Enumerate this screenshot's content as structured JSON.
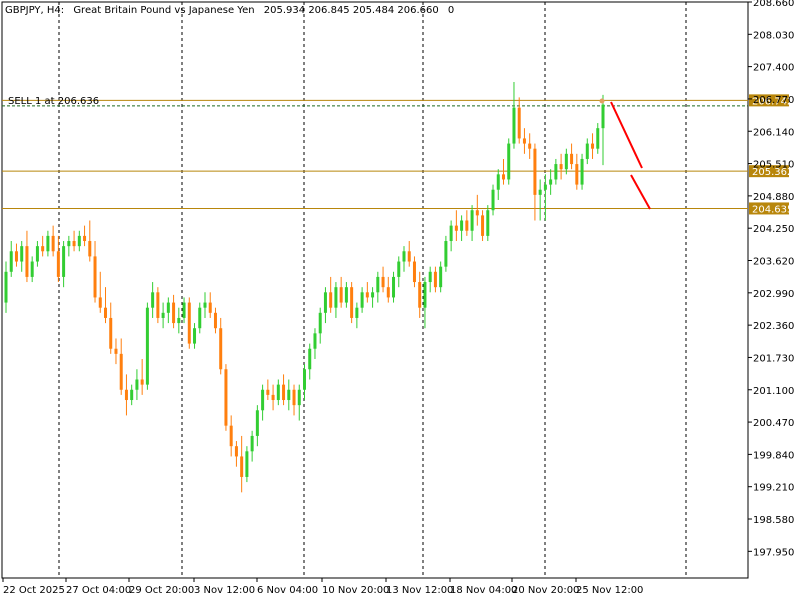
{
  "header": {
    "symbol": "GBPJPY, H4:",
    "description": "Great Britain Pound vs Japanese Yen",
    "ohlc": "205.934 206.845 205.484 206.660",
    "volume": "0"
  },
  "order_label": "SELL 1 at 206.636",
  "colors": {
    "bull": "#32cd32",
    "bear": "#ff7f0e",
    "level": "#b8860b",
    "arrow": "#ff0000",
    "grid": "#000000",
    "price_tag": "#b8860b"
  },
  "chart_data": {
    "type": "candlestick",
    "symbol": "GBPJPY",
    "timeframe": "H4",
    "ylim": [
      197.43,
      208.66
    ],
    "y_ticks": [
      "208.660",
      "208.030",
      "207.400",
      "206.770",
      "206.140",
      "205.510",
      "204.880",
      "204.250",
      "203.620",
      "202.990",
      "202.360",
      "201.730",
      "201.100",
      "200.470",
      "199.840",
      "199.210",
      "198.580",
      "197.950"
    ],
    "x_ticks": [
      "22 Oct 2025",
      "27 Oct 04:00",
      "29 Oct 20:00",
      "3 Nov 12:00",
      "6 Nov 04:00",
      "10 Nov 20:00",
      "13 Nov 12:00",
      "18 Nov 04:00",
      "20 Nov 20:00",
      "25 Nov 12:00"
    ],
    "grid": "vertical dashed",
    "levels": [
      {
        "price": 206.742,
        "label": "206.742"
      },
      {
        "price": 206.636,
        "label": "206.636"
      },
      {
        "price": 205.362,
        "label": "205.362"
      },
      {
        "price": 204.635,
        "label": "204.635"
      }
    ],
    "candles": [
      [
        202.8,
        203.6,
        202.6,
        203.4
      ],
      [
        203.4,
        204.0,
        203.3,
        203.8
      ],
      [
        203.8,
        203.95,
        203.5,
        203.6
      ],
      [
        203.6,
        204.0,
        203.4,
        203.9
      ],
      [
        203.9,
        204.2,
        203.2,
        203.3
      ],
      [
        203.3,
        203.7,
        203.2,
        203.6
      ],
      [
        203.6,
        204.0,
        203.5,
        203.9
      ],
      [
        203.9,
        204.1,
        203.7,
        203.8
      ],
      [
        203.8,
        204.2,
        203.7,
        204.1
      ],
      [
        204.1,
        204.3,
        203.7,
        203.8
      ],
      [
        203.8,
        204.1,
        203.2,
        203.3
      ],
      [
        203.3,
        204.0,
        203.1,
        203.9
      ],
      [
        203.9,
        204.1,
        203.7,
        204.0
      ],
      [
        204.0,
        204.2,
        203.8,
        203.9
      ],
      [
        203.9,
        204.2,
        203.8,
        204.1
      ],
      [
        204.1,
        204.3,
        203.9,
        204.0
      ],
      [
        204.0,
        204.4,
        203.6,
        203.7
      ],
      [
        203.7,
        204.0,
        202.8,
        202.9
      ],
      [
        202.9,
        203.4,
        202.6,
        202.7
      ],
      [
        202.7,
        203.1,
        202.4,
        202.5
      ],
      [
        202.5,
        202.8,
        201.8,
        201.9
      ],
      [
        201.9,
        202.1,
        201.6,
        201.8
      ],
      [
        201.8,
        202.1,
        201.0,
        201.1
      ],
      [
        201.1,
        201.4,
        200.6,
        200.9
      ],
      [
        200.9,
        201.2,
        200.8,
        201.1
      ],
      [
        201.1,
        201.5,
        200.9,
        201.3
      ],
      [
        201.3,
        201.7,
        201.0,
        201.2
      ],
      [
        201.2,
        202.8,
        201.1,
        202.7
      ],
      [
        202.7,
        203.2,
        202.5,
        203.0
      ],
      [
        203.0,
        203.1,
        202.4,
        202.5
      ],
      [
        202.5,
        202.8,
        202.3,
        202.6
      ],
      [
        202.6,
        202.9,
        202.4,
        202.8
      ],
      [
        202.8,
        202.95,
        202.3,
        202.4
      ],
      [
        202.4,
        202.7,
        202.2,
        202.5
      ],
      [
        202.5,
        202.9,
        202.4,
        202.8
      ],
      [
        202.8,
        202.9,
        201.9,
        202.0
      ],
      [
        202.0,
        202.4,
        201.9,
        202.3
      ],
      [
        202.3,
        202.8,
        202.2,
        202.7
      ],
      [
        202.7,
        203.0,
        202.5,
        202.8
      ],
      [
        202.8,
        203.0,
        202.5,
        202.6
      ],
      [
        202.6,
        202.7,
        202.2,
        202.3
      ],
      [
        202.3,
        202.5,
        201.4,
        201.5
      ],
      [
        201.5,
        201.6,
        200.3,
        200.4
      ],
      [
        200.4,
        200.6,
        199.8,
        200.0
      ],
      [
        200.0,
        200.1,
        199.6,
        199.8
      ],
      [
        199.8,
        200.2,
        199.1,
        199.4
      ],
      [
        199.4,
        200.0,
        199.3,
        199.9
      ],
      [
        199.9,
        200.3,
        199.7,
        200.2
      ],
      [
        200.2,
        200.8,
        200.0,
        200.7
      ],
      [
        200.7,
        201.2,
        200.5,
        201.1
      ],
      [
        201.1,
        201.3,
        200.9,
        201.0
      ],
      [
        201.0,
        201.2,
        200.7,
        200.9
      ],
      [
        200.9,
        201.3,
        200.8,
        201.2
      ],
      [
        201.2,
        201.4,
        200.8,
        200.9
      ],
      [
        200.9,
        201.3,
        200.7,
        201.1
      ],
      [
        201.1,
        201.2,
        200.6,
        200.8
      ],
      [
        200.8,
        201.2,
        200.5,
        201.1
      ],
      [
        201.1,
        201.6,
        200.9,
        201.5
      ],
      [
        201.5,
        202.0,
        201.3,
        201.9
      ],
      [
        201.9,
        202.3,
        201.7,
        202.2
      ],
      [
        202.2,
        202.7,
        202.0,
        202.6
      ],
      [
        202.6,
        203.1,
        202.4,
        203.0
      ],
      [
        203.0,
        203.3,
        202.6,
        202.7
      ],
      [
        202.7,
        203.2,
        202.5,
        203.1
      ],
      [
        203.1,
        203.3,
        202.7,
        202.8
      ],
      [
        202.8,
        203.2,
        202.7,
        203.1
      ],
      [
        203.1,
        203.2,
        202.4,
        202.5
      ],
      [
        202.5,
        202.8,
        202.3,
        202.7
      ],
      [
        202.7,
        203.1,
        202.6,
        203.0
      ],
      [
        203.0,
        203.2,
        202.8,
        202.9
      ],
      [
        202.9,
        203.1,
        202.7,
        203.0
      ],
      [
        203.0,
        203.4,
        202.8,
        203.3
      ],
      [
        203.3,
        203.5,
        203.0,
        203.1
      ],
      [
        203.1,
        203.3,
        202.8,
        202.9
      ],
      [
        202.9,
        203.4,
        202.8,
        203.3
      ],
      [
        203.3,
        203.7,
        203.1,
        203.6
      ],
      [
        203.6,
        203.9,
        203.4,
        203.8
      ],
      [
        203.8,
        204.0,
        203.5,
        203.6
      ],
      [
        203.6,
        203.7,
        203.1,
        203.2
      ],
      [
        203.2,
        203.4,
        202.5,
        202.7
      ],
      [
        202.7,
        203.3,
        202.3,
        203.2
      ],
      [
        203.2,
        203.5,
        203.0,
        203.4
      ],
      [
        203.4,
        203.5,
        203.0,
        203.1
      ],
      [
        203.1,
        203.6,
        203.0,
        203.5
      ],
      [
        203.5,
        204.1,
        203.4,
        204.0
      ],
      [
        204.0,
        204.4,
        203.8,
        204.3
      ],
      [
        204.3,
        204.6,
        204.0,
        204.2
      ],
      [
        204.2,
        204.5,
        204.0,
        204.4
      ],
      [
        204.4,
        204.6,
        204.1,
        204.2
      ],
      [
        204.2,
        204.7,
        204.0,
        204.6
      ],
      [
        204.6,
        204.9,
        204.3,
        204.5
      ],
      [
        204.5,
        204.6,
        204.0,
        204.1
      ],
      [
        204.1,
        204.7,
        204.0,
        204.6
      ],
      [
        204.6,
        205.1,
        204.5,
        205.0
      ],
      [
        205.0,
        205.4,
        204.8,
        205.3
      ],
      [
        205.3,
        205.6,
        205.1,
        205.2
      ],
      [
        205.2,
        206.0,
        205.1,
        205.9
      ],
      [
        205.9,
        207.1,
        205.8,
        206.6
      ],
      [
        206.6,
        206.8,
        205.9,
        206.0
      ],
      [
        206.0,
        206.2,
        205.7,
        205.9
      ],
      [
        205.9,
        206.1,
        205.6,
        205.8
      ],
      [
        205.8,
        205.9,
        204.4,
        204.9
      ],
      [
        204.9,
        205.2,
        204.4,
        205.0
      ],
      [
        205.0,
        205.3,
        204.4,
        205.1
      ],
      [
        205.1,
        205.4,
        204.9,
        205.2
      ],
      [
        205.2,
        205.6,
        205.1,
        205.5
      ],
      [
        205.5,
        205.7,
        205.2,
        205.4
      ],
      [
        205.4,
        205.8,
        205.3,
        205.7
      ],
      [
        205.7,
        205.9,
        205.4,
        205.5
      ],
      [
        205.5,
        205.7,
        205.0,
        205.1
      ],
      [
        205.1,
        205.7,
        205.0,
        205.6
      ],
      [
        205.6,
        206.0,
        205.5,
        205.9
      ],
      [
        205.9,
        206.1,
        205.6,
        205.8
      ],
      [
        205.8,
        206.3,
        205.7,
        206.2
      ],
      [
        206.2,
        206.85,
        205.48,
        206.66
      ]
    ]
  }
}
